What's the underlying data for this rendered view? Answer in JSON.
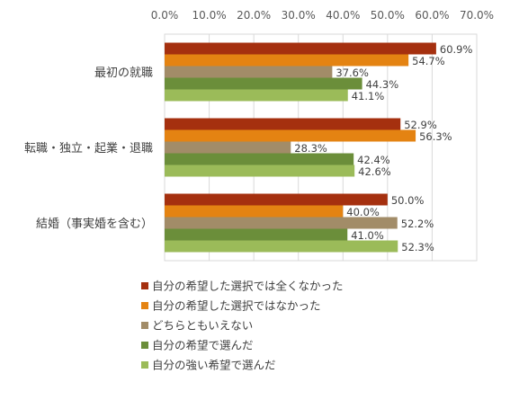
{
  "chart_data": {
    "type": "bar",
    "orientation": "horizontal",
    "title": "",
    "xlabel": "",
    "ylabel": "",
    "xlim": [
      0,
      70
    ],
    "x_ticks": [
      "0.0%",
      "10.0%",
      "20.0%",
      "30.0%",
      "40.0%",
      "50.0%",
      "60.0%",
      "70.0%"
    ],
    "x_axis_position": "top",
    "grid": true,
    "legend_position": "bottom",
    "categories": [
      "最初の就職",
      "転職・独立・起業・退職",
      "結婚（事実婚を含む）"
    ],
    "series": [
      {
        "name": "自分の希望した選択では全くなかった",
        "color": "#A5300F",
        "values": [
          60.9,
          52.9,
          50.0
        ],
        "labels": [
          "60.9%",
          "52.9%",
          "50.0%"
        ]
      },
      {
        "name": "自分の希望した選択ではなかった",
        "color": "#E48312",
        "values": [
          54.7,
          56.3,
          40.0
        ],
        "labels": [
          "54.7%",
          "56.3%",
          "40.0%"
        ]
      },
      {
        "name": "どちらともいえない",
        "color": "#A28C68",
        "values": [
          37.6,
          28.3,
          52.2
        ],
        "labels": [
          "37.6%",
          "28.3%",
          "52.2%"
        ]
      },
      {
        "name": "自分の希望で選んだ",
        "color": "#6B8E3A",
        "values": [
          44.3,
          42.4,
          41.0
        ],
        "labels": [
          "44.3%",
          "42.4%",
          "41.0%"
        ]
      },
      {
        "name": "自分の強い希望で選んだ",
        "color": "#9BBB59",
        "values": [
          41.1,
          42.6,
          52.3
        ],
        "labels": [
          "41.1%",
          "42.6%",
          "52.3%"
        ]
      }
    ]
  }
}
